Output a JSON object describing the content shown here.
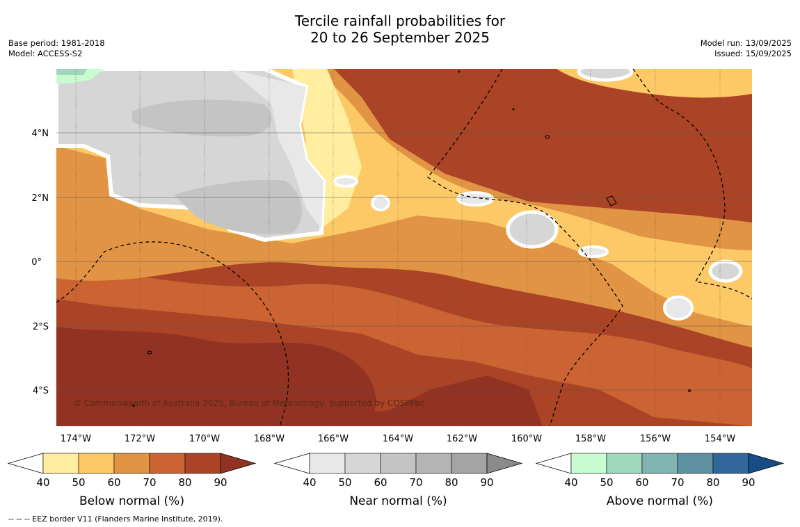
{
  "header": {
    "title_line1": "Tercile rainfall probabilities for",
    "title_line2": "20 to 26 September 2025",
    "base_period": "Base period: 1981-2018",
    "model": "Model: ACCESS-S2",
    "model_run": "Model run: 13/09/2025",
    "issued": "Issued: 15/09/2025"
  },
  "map": {
    "lon_ticks": [
      "174°W",
      "172°W",
      "170°W",
      "168°W",
      "166°W",
      "164°W",
      "162°W",
      "160°W",
      "158°W",
      "156°W",
      "154°W"
    ],
    "lat_ticks": [
      "4°N",
      "2°N",
      "0°",
      "2°S",
      "4°S"
    ],
    "copyright": "© Commonwealth of Australia 2025, Bureau of Meteorology, supported by COSPPac"
  },
  "colorbars": [
    {
      "label": "Below normal (%)",
      "ticks": [
        "40",
        "50",
        "60",
        "70",
        "80",
        "90"
      ],
      "colors": [
        "#ffeea0",
        "#fdc866",
        "#e09444",
        "#cb6432",
        "#ab4426",
        "#923222"
      ]
    },
    {
      "label": "Near normal (%)",
      "ticks": [
        "40",
        "50",
        "60",
        "70",
        "80",
        "90"
      ],
      "colors": [
        "#e8e8e8",
        "#d6d6d6",
        "#c4c4c4",
        "#b4b4b4",
        "#a4a4a4",
        "#8a8a8a"
      ]
    },
    {
      "label": "Above normal (%)",
      "ticks": [
        "40",
        "50",
        "60",
        "70",
        "80",
        "90"
      ],
      "colors": [
        "#c8fcd0",
        "#a0d8be",
        "#80b4b0",
        "#5e92a0",
        "#33669a",
        "#174c84"
      ]
    }
  ],
  "footnote": "--  --  -- EEZ border V11 (Flanders Marine Institute, 2019)."
}
